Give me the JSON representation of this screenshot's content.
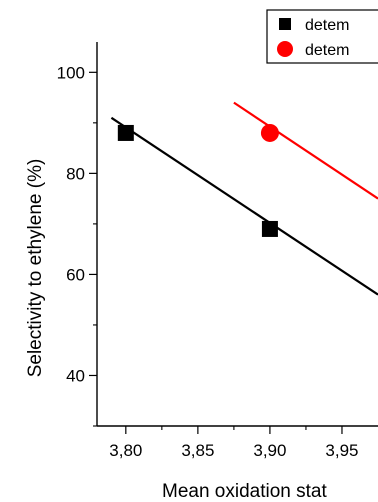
{
  "colors": {
    "series_black": "#000000",
    "series_red": "#ff0000",
    "axis": "#000000",
    "background": "#ffffff"
  },
  "chart_data": {
    "type": "scatter",
    "title": "",
    "xlabel": "Mean oxidation stat",
    "ylabel": "Selectivity to ethylene (%)",
    "xlim": [
      3.78,
      3.975
    ],
    "ylim": [
      30,
      106
    ],
    "x_ticks": [
      3.8,
      3.85,
      3.9,
      3.95
    ],
    "x_tick_labels": [
      "3,80",
      "3,85",
      "3,90",
      "3,95"
    ],
    "y_ticks": [
      40,
      60,
      80,
      100
    ],
    "y_tick_labels": [
      "40",
      "60",
      "80",
      "100"
    ],
    "grid": false,
    "legend_position": "top-right",
    "series": [
      {
        "name": "detem",
        "marker": "square",
        "color": "#000000",
        "points": [
          {
            "x": 3.8,
            "y": 88
          },
          {
            "x": 3.9,
            "y": 69
          }
        ],
        "fit": [
          {
            "x": 3.79,
            "y": 91
          },
          {
            "x": 3.975,
            "y": 56
          }
        ]
      },
      {
        "name": "detem",
        "marker": "circle",
        "color": "#ff0000",
        "points": [
          {
            "x": 3.9,
            "y": 88
          }
        ],
        "fit": [
          {
            "x": 3.875,
            "y": 94
          },
          {
            "x": 3.975,
            "y": 75
          }
        ]
      }
    ]
  }
}
